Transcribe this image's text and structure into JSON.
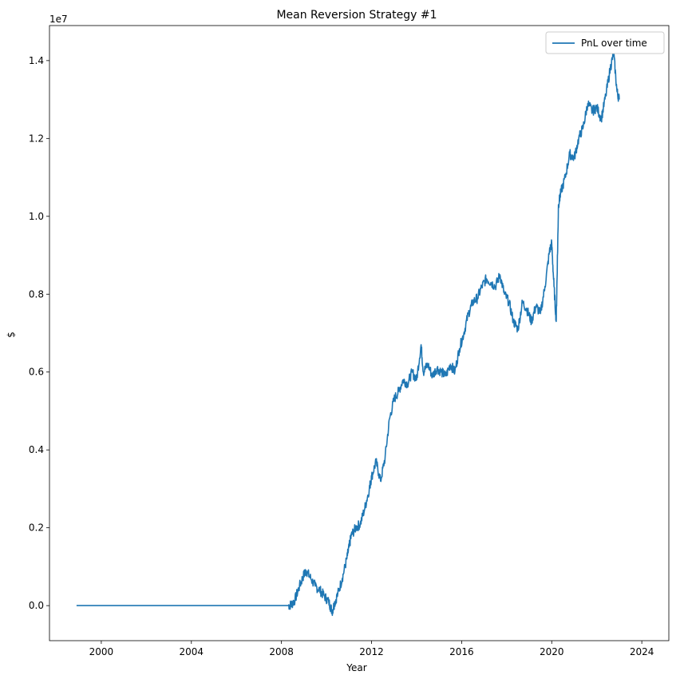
{
  "chart_data": {
    "type": "line",
    "title": "Mean Reversion Strategy #1",
    "xlabel": "Year",
    "ylabel": "$",
    "y_offset_label": "1e7",
    "xlim": [
      1997.7,
      2025.2
    ],
    "ylim": [
      -900000,
      14900000
    ],
    "x_ticks": [
      2000,
      2004,
      2008,
      2012,
      2016,
      2020,
      2024
    ],
    "x_tick_labels": [
      "2000",
      "2004",
      "2008",
      "2012",
      "2016",
      "2020",
      "2024"
    ],
    "y_ticks": [
      0,
      2000000,
      4000000,
      6000000,
      8000000,
      10000000,
      12000000,
      14000000
    ],
    "y_tick_labels": [
      "0.0",
      "0.2",
      "0.4",
      "0.6",
      "0.8",
      "1.0",
      "1.2",
      "1.4"
    ],
    "grid": false,
    "legend_position": "top-right",
    "series": [
      {
        "name": "PnL over time",
        "color": "#1f77b4",
        "x": [
          1998.9,
          2008.3,
          2008.45,
          2008.6,
          2008.8,
          2009.0,
          2009.1,
          2009.3,
          2009.5,
          2009.7,
          2009.9,
          2010.1,
          2010.25,
          2010.35,
          2010.5,
          2010.7,
          2010.9,
          2011.0,
          2011.1,
          2011.3,
          2011.5,
          2011.7,
          2011.9,
          2012.0,
          2012.2,
          2012.4,
          2012.6,
          2012.8,
          2013.0,
          2013.2,
          2013.4,
          2013.6,
          2013.8,
          2014.0,
          2014.2,
          2014.3,
          2014.5,
          2014.7,
          2014.9,
          2015.1,
          2015.3,
          2015.5,
          2015.7,
          2015.9,
          2016.1,
          2016.3,
          2016.5,
          2016.7,
          2016.9,
          2017.1,
          2017.3,
          2017.5,
          2017.7,
          2017.9,
          2018.1,
          2018.3,
          2018.5,
          2018.7,
          2018.9,
          2019.1,
          2019.3,
          2019.5,
          2019.7,
          2019.9,
          2020.0,
          2020.1,
          2020.2,
          2020.25,
          2020.3,
          2020.4,
          2020.6,
          2020.8,
          2021.0,
          2021.2,
          2021.4,
          2021.6,
          2021.8,
          2022.0,
          2022.2,
          2022.4,
          2022.6,
          2022.75,
          2022.9,
          2023.0
        ],
        "y": [
          0,
          0,
          30000,
          150000,
          500000,
          800000,
          900000,
          700000,
          500000,
          400000,
          250000,
          100000,
          -150000,
          50000,
          300000,
          700000,
          1200000,
          1500000,
          1800000,
          2000000,
          2100000,
          2500000,
          3000000,
          3300000,
          3700000,
          3200000,
          3800000,
          4800000,
          5300000,
          5500000,
          5800000,
          5700000,
          6000000,
          5800000,
          6700000,
          6000000,
          6200000,
          5900000,
          6100000,
          6000000,
          5900000,
          6200000,
          6000000,
          6600000,
          7000000,
          7500000,
          7800000,
          7900000,
          8200000,
          8400000,
          8300000,
          8200000,
          8500000,
          8000000,
          7800000,
          7300000,
          7100000,
          7800000,
          7600000,
          7300000,
          7700000,
          7500000,
          8200000,
          9100000,
          9300000,
          8200000,
          7300000,
          8800000,
          10300000,
          10600000,
          11000000,
          11600000,
          11500000,
          12000000,
          12300000,
          12900000,
          12700000,
          12800000,
          12500000,
          13100000,
          13800000,
          14200000,
          13200000,
          13000000
        ]
      }
    ]
  }
}
